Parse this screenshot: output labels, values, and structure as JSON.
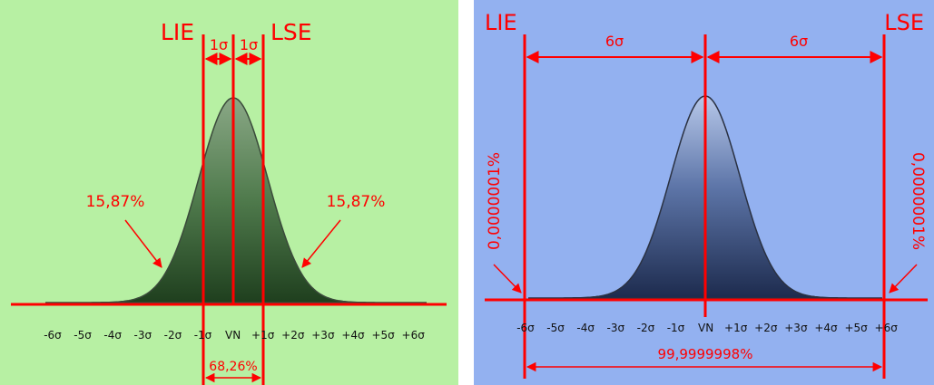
{
  "left_panel": {
    "background": "#b7f0a3",
    "curve_fill": "#2f5a2d",
    "accent": "#ff0000",
    "limit_low_label": "LIE",
    "limit_high_label": "LSE",
    "sigma_span_left": "1σ",
    "sigma_span_right": "1σ",
    "tail_left_percent": "15,87%",
    "tail_right_percent": "15,87%",
    "center_percent": "68,26%",
    "ticks": [
      "-6σ",
      "-5σ",
      "-4σ",
      "-3σ",
      "-2σ",
      "-1σ",
      "VN",
      "+1σ",
      "+2σ",
      "+3σ",
      "+4σ",
      "+5σ",
      "+6σ"
    ]
  },
  "right_panel": {
    "background": "#93b1f0",
    "curve_fill": "#2a3e6a",
    "accent": "#ff0000",
    "limit_low_label": "LIE",
    "limit_high_label": "LSE",
    "sigma_span_left": "6σ",
    "sigma_span_right": "6σ",
    "tail_left_percent": "0,0000001%",
    "tail_right_percent": "0,0000001%",
    "total_percent": "99,9999998%",
    "ticks": [
      "-6σ",
      "-5σ",
      "-4σ",
      "-3σ",
      "-2σ",
      "-1σ",
      "VN",
      "+1σ",
      "+2σ",
      "+3σ",
      "+4σ",
      "+5σ",
      "+6σ"
    ]
  }
}
